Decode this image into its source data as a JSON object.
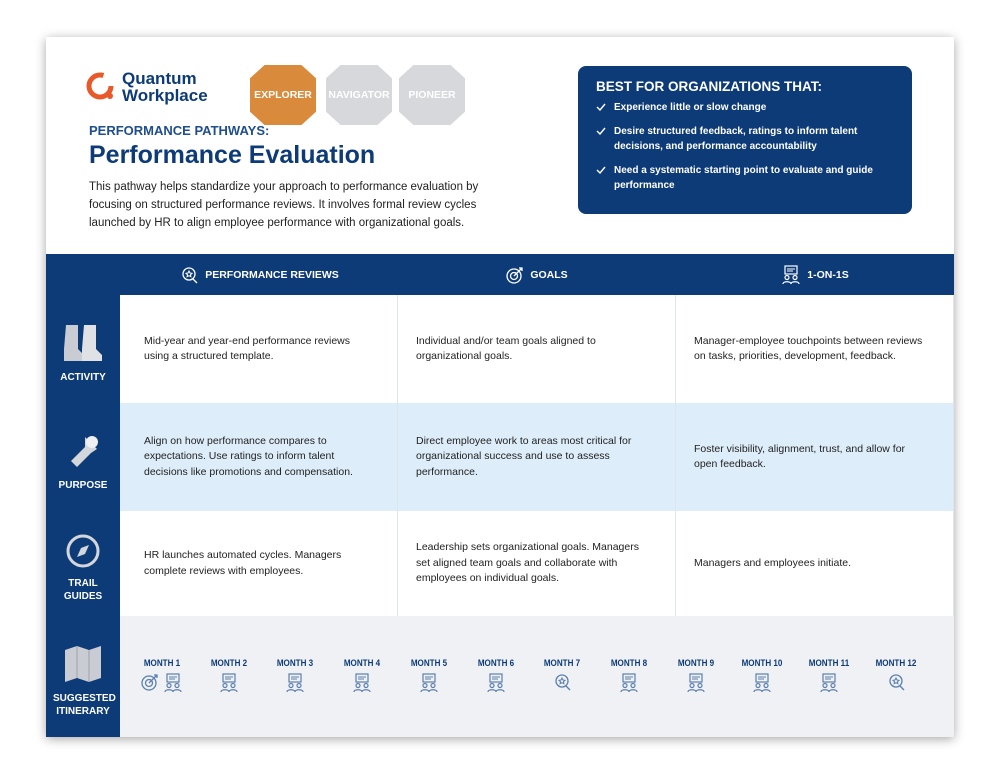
{
  "header": {
    "logo_lines": [
      "Quantum",
      "Workplace"
    ],
    "badges": [
      "EXPLORER",
      "NAVIGATOR",
      "PIONEER"
    ],
    "eyebrow": "PERFORMANCE PATHWAYS:",
    "title": "Performance Evaluation",
    "description": "This pathway helps standardize your approach to performance evaluation by focusing on structured performance reviews. It involves formal review cycles launched by HR to align employee performance with organizational goals."
  },
  "best_for": {
    "heading": "BEST FOR ORGANIZATIONS THAT:",
    "items": [
      "Experience little or slow change",
      "Desire structured feedback, ratings to inform talent decisions, and performance accountability",
      "Need a systematic starting point to evaluate and guide performance"
    ]
  },
  "table": {
    "columns": [
      "PERFORMANCE REVIEWS",
      "GOALS",
      "1-ON-1S"
    ],
    "rows": [
      {
        "label": "ACTIVITY",
        "cells": [
          "Mid-year and year-end performance reviews using a structured template.",
          "Individual and/or team goals aligned to organizational goals.",
          "Manager-employee touchpoints between reviews on tasks, priorities, development, feedback."
        ]
      },
      {
        "label": "PURPOSE",
        "cells": [
          "Align on how performance compares to expectations. Use ratings to inform talent decisions like promotions and compensation.",
          "Direct employee work to areas most critical for organizational success and use to assess performance.",
          "Foster visibility, alignment, trust, and allow for open feedback."
        ]
      },
      {
        "label": "TRAIL GUIDES",
        "cells": [
          "HR launches automated cycles. Managers complete reviews with employees.",
          "Leadership sets organizational goals. Managers set aligned team goals and collaborate with employees on individual goals.",
          "Managers and employees initiate."
        ]
      }
    ]
  },
  "itinerary": {
    "label": "SUGGESTED ITINERARY",
    "months": [
      "MONTH 1",
      "MONTH 2",
      "MONTH 3",
      "MONTH 4",
      "MONTH 5",
      "MONTH 6",
      "MONTH 7",
      "MONTH 8",
      "MONTH 9",
      "MONTH 10",
      "MONTH 11",
      "MONTH 12"
    ]
  }
}
